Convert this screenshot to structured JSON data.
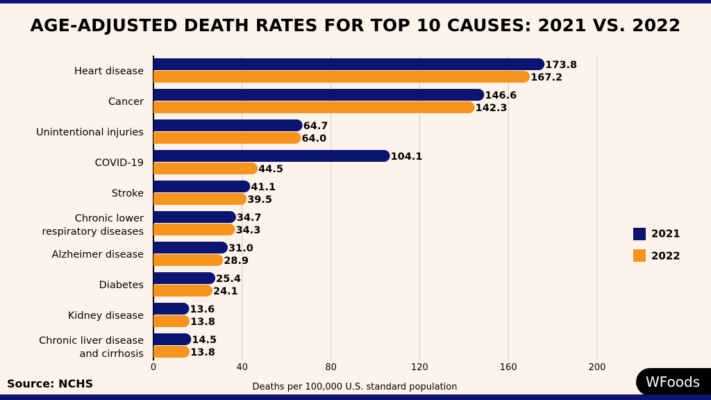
{
  "chart_data": {
    "type": "bar",
    "orientation": "horizontal",
    "title": "AGE-ADJUSTED DEATH RATES FOR TOP 10 CAUSES: 2021 VS. 2022",
    "xlabel": "Deaths per 100,000 U.S. standard population",
    "ylabel": "",
    "xlim": [
      0,
      200
    ],
    "xticks": [
      0,
      40,
      80,
      120,
      160,
      200
    ],
    "grid": true,
    "legend_placement": "right",
    "categories": [
      "Heart disease",
      "Cancer",
      "Unintentional injuries",
      "COVID-19",
      "Stroke",
      "Chronic lower\nrespiratory diseases",
      "Alzheimer disease",
      "Diabetes",
      "Kidney disease",
      "Chronic liver disease\nand cirrhosis"
    ],
    "series": [
      {
        "name": "2021",
        "color": "#0b1470",
        "values": [
          173.8,
          146.6,
          64.7,
          104.1,
          41.1,
          34.7,
          31.0,
          25.4,
          13.6,
          14.5
        ]
      },
      {
        "name": "2022",
        "color": "#f7941d",
        "values": [
          167.2,
          142.3,
          64.0,
          44.5,
          39.5,
          34.3,
          28.9,
          24.1,
          13.8,
          13.8
        ]
      }
    ]
  },
  "source": "Source: NCHS",
  "logo": "WFoods"
}
